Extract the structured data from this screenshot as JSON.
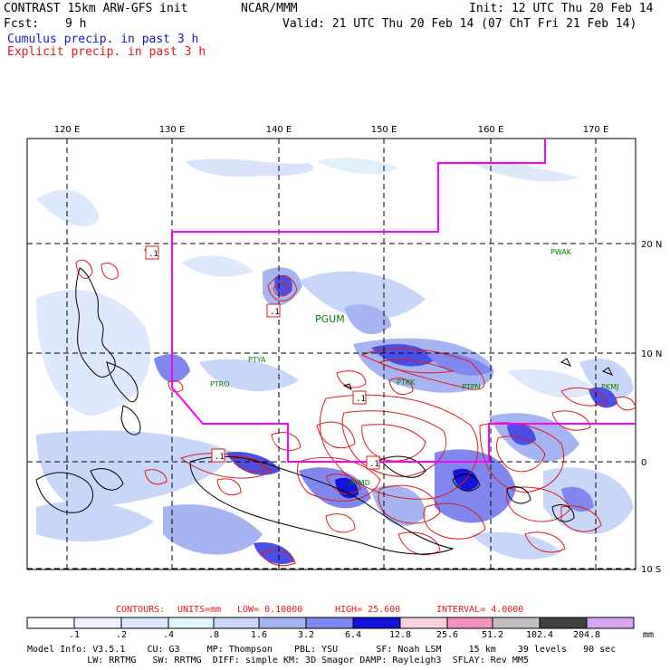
{
  "header": {
    "title": "CONTRAST 15km ARW-GFS init",
    "org": "NCAR/MMM",
    "init": "Init: 12 UTC Thu 20 Feb 14",
    "fcst_label": "Fcst:",
    "fcst_value": "9 h",
    "valid": "Valid: 21 UTC Thu 20 Feb 14 (07 ChT Fri 21 Feb 14)",
    "legend_cumulus": "Cumulus precip. in past 3 h",
    "legend_explicit": "Explicit precip. in past 3 h"
  },
  "map": {
    "lon_labels": [
      "120 E",
      "130 E",
      "140 E",
      "150 E",
      "160 E",
      "170 E"
    ],
    "lat_labels": [
      "20 N",
      "10 N",
      "0",
      "10 S"
    ],
    "stations": [
      "PGUM",
      "PTYA",
      "PTRO",
      "PWAK",
      "PTKK",
      "PTPN",
      "PKMJ",
      "AYMD"
    ],
    "box_labels": [
      ".1",
      ".1",
      ".1",
      ".1",
      ".1"
    ],
    "colors": {
      "domain_line": "#ff00ff",
      "explicit": "#e01818",
      "cumulus": "#3333cc",
      "station": "#008000"
    }
  },
  "contours": {
    "label": "CONTOURS:",
    "units": "UNITS=mm",
    "low": "LOW= 0.10000",
    "high": "HIGH= 25.600",
    "interval": "INTERVAL= 4.0000"
  },
  "scale": {
    "values": [
      ".1",
      ".2",
      ".4",
      ".8",
      "1.6",
      "3.2",
      "6.4",
      "12.8",
      "25.6",
      "51.2",
      "102.4",
      "204.8"
    ],
    "unit": "mm",
    "colors": [
      "#ffffff",
      "#eef3ff",
      "#d8e6ff",
      "#dff6fb",
      "#c7d6f9",
      "#a7b4f2",
      "#8087ee",
      "#4b4fe6",
      "#1414d8",
      "#f9d0de",
      "#f492bd",
      "#c0c0c0",
      "#404040",
      "#d8a6f0"
    ]
  },
  "model_info": {
    "line1": "Model Info: V3.5.1    CU: G3     MP: Thompson    PBL: YSU       SF: Noah LSM     15 km    39 levels   90 sec",
    "line2": "           LW: RRTMG   SW: RRTMG  DIFF: simple KM: 3D Smagor DAMP: Rayleigh3  SFLAY: Rev MM5"
  }
}
